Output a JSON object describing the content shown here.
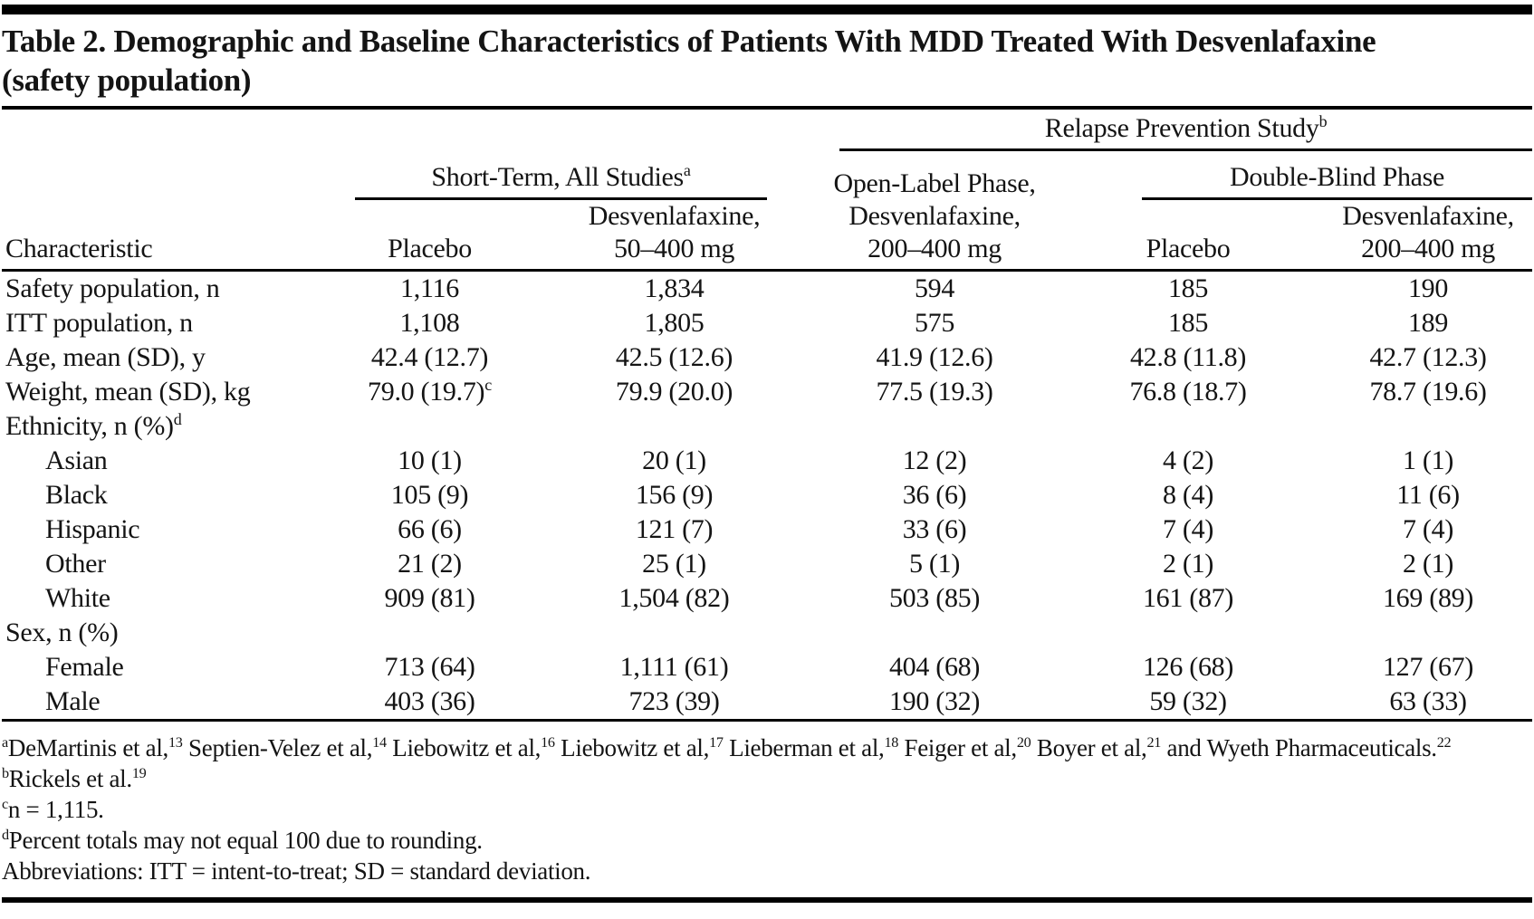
{
  "title": {
    "line1": "Table 2. Demographic and Baseline Characteristics of Patients With MDD Treated With Desvenlafaxine",
    "line2": "(safety population)"
  },
  "header": {
    "characteristic": "Characteristic",
    "relapse_prevention": "Relapse Prevention Study^{b}",
    "short_term": "Short-Term, All Studies^{a}",
    "double_blind": "Double-Blind Phase",
    "open_label": "Open-Label Phase,\nDesvenlafaxine,\n200–400 mg",
    "placebo_short_term": "Placebo",
    "desvenlafaxine_short_term": "Desvenlafaxine,\n50–400 mg",
    "placebo_double_blind": "Placebo",
    "desvenlafaxine_double_blind": "Desvenlafaxine,\n200–400 mg"
  },
  "rows": [
    {
      "label": "Safety population, n",
      "indent": false,
      "values": [
        "1,116",
        "1,834",
        "594",
        "185",
        "190"
      ]
    },
    {
      "label": "ITT population, n",
      "indent": false,
      "values": [
        "1,108",
        "1,805",
        "575",
        "185",
        "189"
      ]
    },
    {
      "label": "Age, mean (SD), y",
      "indent": false,
      "values": [
        "42.4 (12.7)",
        "42.5 (12.6)",
        "41.9 (12.6)",
        "42.8 (11.8)",
        "42.7 (12.3)"
      ]
    },
    {
      "label": "Weight, mean (SD), kg",
      "indent": false,
      "values": [
        "79.0 (19.7)^{c}",
        "79.9 (20.0)",
        "77.5 (19.3)",
        "76.8 (18.7)",
        "78.7 (19.6)"
      ]
    },
    {
      "label": "Ethnicity, n (%)^{d}",
      "indent": false,
      "values": [
        "",
        "",
        "",
        "",
        ""
      ]
    },
    {
      "label": "Asian",
      "indent": true,
      "values": [
        "10 (1)",
        "20 (1)",
        "12 (2)",
        "4 (2)",
        "1 (1)"
      ]
    },
    {
      "label": "Black",
      "indent": true,
      "values": [
        "105 (9)",
        "156 (9)",
        "36 (6)",
        "8 (4)",
        "11 (6)"
      ]
    },
    {
      "label": "Hispanic",
      "indent": true,
      "values": [
        "66 (6)",
        "121 (7)",
        "33 (6)",
        "7 (4)",
        "7 (4)"
      ]
    },
    {
      "label": "Other",
      "indent": true,
      "values": [
        "21 (2)",
        "25 (1)",
        "5 (1)",
        "2 (1)",
        "2 (1)"
      ]
    },
    {
      "label": "White",
      "indent": true,
      "values": [
        "909 (81)",
        "1,504 (82)",
        "503 (85)",
        "161 (87)",
        "169 (89)"
      ]
    },
    {
      "label": "Sex, n (%)",
      "indent": false,
      "values": [
        "",
        "",
        "",
        "",
        ""
      ]
    },
    {
      "label": "Female",
      "indent": true,
      "values": [
        "713 (64)",
        "1,111 (61)",
        "404 (68)",
        "126 (68)",
        "127 (67)"
      ]
    },
    {
      "label": "Male",
      "indent": true,
      "values": [
        "403 (36)",
        "723 (39)",
        "190 (32)",
        "59 (32)",
        "63 (33)"
      ]
    }
  ],
  "footnotes": [
    "^{a}DeMartinis et al,^{13} Septien-Velez et al,^{14} Liebowitz et al,^{16} Liebowitz et al,^{17} Lieberman et al,^{18} Feiger et al,^{20} Boyer et al,^{21} and Wyeth Pharmaceuticals.^{22}",
    "^{b}Rickels et al.^{19}",
    "^{c}n = 1,115.",
    "^{d}Percent totals may not equal 100 due to rounding.",
    "Abbreviations: ITT = intent-to-treat; SD = standard deviation."
  ],
  "colors": {
    "background": "#ffffff",
    "text": "#141414",
    "rule": "#000000"
  }
}
